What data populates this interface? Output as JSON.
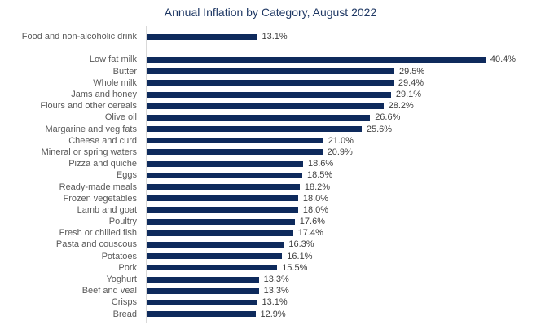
{
  "chart_data": {
    "type": "bar",
    "orientation": "horizontal",
    "title": "Annual Inflation by Category, August 2022",
    "value_suffix": "%",
    "xlim": [
      0,
      44
    ],
    "grid": false,
    "legend": false,
    "colors": {
      "bar": "#0e2a5c",
      "title": "#1f3864",
      "category_label": "#595959",
      "value_label": "#404040",
      "axis_line": "#d9d9d9"
    },
    "groups": [
      {
        "name": "overall",
        "rows": [
          {
            "category": "Food and non-alcoholic drink",
            "value": 13.1,
            "label": "13.1%"
          }
        ]
      },
      {
        "name": "food-categories",
        "rows": [
          {
            "category": "Low fat milk",
            "value": 40.4,
            "label": "40.4%"
          },
          {
            "category": "Butter",
            "value": 29.5,
            "label": "29.5%"
          },
          {
            "category": "Whole milk",
            "value": 29.4,
            "label": "29.4%"
          },
          {
            "category": "Jams and honey",
            "value": 29.1,
            "label": "29.1%"
          },
          {
            "category": "Flours and other cereals",
            "value": 28.2,
            "label": "28.2%"
          },
          {
            "category": "Olive oil",
            "value": 26.6,
            "label": "26.6%"
          },
          {
            "category": "Margarine and veg fats",
            "value": 25.6,
            "label": "25.6%"
          },
          {
            "category": "Cheese and curd",
            "value": 21.0,
            "label": "21.0%"
          },
          {
            "category": "Mineral or spring waters",
            "value": 20.9,
            "label": "20.9%"
          },
          {
            "category": "Pizza and quiche",
            "value": 18.6,
            "label": "18.6%"
          },
          {
            "category": "Eggs",
            "value": 18.5,
            "label": "18.5%"
          },
          {
            "category": "Ready-made meals",
            "value": 18.2,
            "label": "18.2%"
          },
          {
            "category": "Frozen vegetables",
            "value": 18.0,
            "label": "18.0%"
          },
          {
            "category": "Lamb and goat",
            "value": 18.0,
            "label": "18.0%"
          },
          {
            "category": "Poultry",
            "value": 17.6,
            "label": "17.6%"
          },
          {
            "category": "Fresh or chilled fish",
            "value": 17.4,
            "label": "17.4%"
          },
          {
            "category": "Pasta and couscous",
            "value": 16.3,
            "label": "16.3%"
          },
          {
            "category": "Potatoes",
            "value": 16.1,
            "label": "16.1%"
          },
          {
            "category": "Pork",
            "value": 15.5,
            "label": "15.5%"
          },
          {
            "category": "Yoghurt",
            "value": 13.3,
            "label": "13.3%"
          },
          {
            "category": "Beef and veal",
            "value": 13.3,
            "label": "13.3%"
          },
          {
            "category": "Crisps",
            "value": 13.1,
            "label": "13.1%"
          },
          {
            "category": "Bread",
            "value": 12.9,
            "label": "12.9%"
          }
        ]
      }
    ]
  }
}
